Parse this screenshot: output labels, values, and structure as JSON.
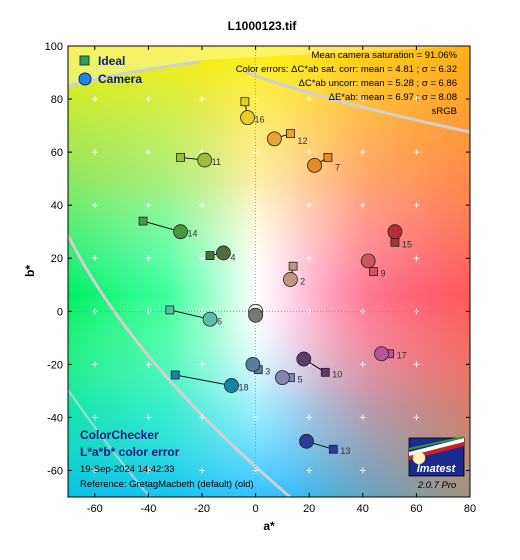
{
  "page_title": "L1000123.tif",
  "chart_data": {
    "type": "scatter",
    "title": "L1000123.tif",
    "xlabel": "a*",
    "ylabel": "b*",
    "xlim": [
      -70,
      80
    ],
    "ylim": [
      -70,
      100
    ],
    "xticks": [
      -60,
      -40,
      -20,
      0,
      20,
      40,
      60,
      80
    ],
    "yticks": [
      -60,
      -40,
      -20,
      0,
      20,
      40,
      60,
      80,
      100
    ],
    "grid": true,
    "legend_position": "top-left",
    "series": [
      {
        "name": "Ideal",
        "marker": "square",
        "color": "#2f9b59"
      },
      {
        "name": "Camera",
        "marker": "circle",
        "color": "#1e84e8"
      }
    ],
    "patches": [
      {
        "id": "2",
        "ideal": [
          14,
          17
        ],
        "camera": [
          13,
          12
        ],
        "color": "#c29484"
      },
      {
        "id": "3",
        "ideal": [
          1,
          -22
        ],
        "camera": [
          -1,
          -20
        ],
        "color": "#5b7ca2"
      },
      {
        "id": "4",
        "ideal": [
          -17,
          21
        ],
        "camera": [
          -12,
          22
        ],
        "color": "#566b3a"
      },
      {
        "id": "5",
        "ideal": [
          13,
          -25
        ],
        "camera": [
          10,
          -25
        ],
        "color": "#8582b0"
      },
      {
        "id": "6",
        "ideal": [
          -32,
          0.5
        ],
        "camera": [
          -17,
          -3
        ],
        "color": "#5bbdac"
      },
      {
        "id": "7",
        "ideal": [
          27,
          58
        ],
        "camera": [
          22,
          55
        ],
        "color": "#e38a2a"
      },
      {
        "id": "9",
        "ideal": [
          44,
          15
        ],
        "camera": [
          42,
          19
        ],
        "color": "#c95764"
      },
      {
        "id": "10",
        "ideal": [
          26,
          -23
        ],
        "camera": [
          18,
          -18
        ],
        "color": "#5d3c6c"
      },
      {
        "id": "11",
        "ideal": [
          -28,
          58
        ],
        "camera": [
          -19,
          57
        ],
        "color": "#9cbd3e"
      },
      {
        "id": "12",
        "ideal": [
          13,
          67
        ],
        "camera": [
          7,
          65
        ],
        "color": "#e8a330"
      },
      {
        "id": "13",
        "ideal": [
          29,
          -52
        ],
        "camera": [
          19,
          -49
        ],
        "color": "#2c3d98"
      },
      {
        "id": "14",
        "ideal": [
          -42,
          34
        ],
        "camera": [
          -28,
          30
        ],
        "color": "#4c9647"
      },
      {
        "id": "15",
        "ideal": [
          52,
          26
        ],
        "camera": [
          52,
          30
        ],
        "color": "#b72f36"
      },
      {
        "id": "16",
        "ideal": [
          -4,
          79
        ],
        "camera": [
          -3,
          73
        ],
        "color": "#eccd1c"
      },
      {
        "id": "17",
        "ideal": [
          50,
          -16
        ],
        "camera": [
          47,
          -16
        ],
        "color": "#bb5597"
      },
      {
        "id": "18",
        "ideal": [
          -30,
          -24
        ],
        "camera": [
          -9,
          -28
        ],
        "color": "#1384a5"
      },
      {
        "id": "",
        "ideal": [
          1,
          -1
        ],
        "camera": [
          0,
          0
        ],
        "color": "#f3f3f0"
      },
      {
        "id": "",
        "ideal": [
          0,
          -1
        ],
        "camera": [
          0,
          -1.5
        ],
        "color": "#777777"
      }
    ],
    "annotations": [
      "Mean camera saturation = 91.06%",
      "Color errors:  ΔC*ab sat. corr:  mean = 4.81 ;  σ = 6.32",
      "ΔC*ab uncorr:  mean = 5.28 ;  σ = 6.86",
      "ΔE*ab:  mean = 6.97 ;  σ = 8.08",
      "sRGB"
    ]
  },
  "footer": {
    "line1": "ColorChecker",
    "line2": "L*a*b* color error",
    "date": "19-Sep-2024 14:42:33",
    "reference": "Reference: GretagMacbeth (default) (old)"
  },
  "logo": {
    "name": "Imatest",
    "version": "2.0.7  Pro"
  }
}
